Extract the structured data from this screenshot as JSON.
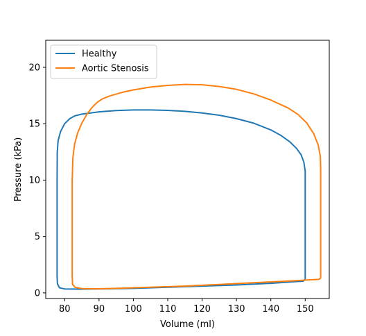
{
  "chart_data": {
    "type": "line",
    "title": "",
    "xlabel": "Volume (ml)",
    "ylabel": "Pressure (kPa)",
    "xlim": [
      74.5,
      157.0
    ],
    "ylim": [
      -0.5,
      22.4
    ],
    "xticks": [
      80,
      90,
      100,
      110,
      120,
      130,
      140,
      150
    ],
    "yticks": [
      0,
      5,
      10,
      15,
      20
    ],
    "grid": false,
    "legend_position": "upper-left",
    "series": [
      {
        "name": "Healthy",
        "color": "#1f77b4",
        "points": [
          [
            150.0,
            1.2
          ],
          [
            149.5,
            1.05
          ],
          [
            140.0,
            0.85
          ],
          [
            130.0,
            0.7
          ],
          [
            120.0,
            0.6
          ],
          [
            110.0,
            0.5
          ],
          [
            100.0,
            0.4
          ],
          [
            90.0,
            0.35
          ],
          [
            85.0,
            0.33
          ],
          [
            80.0,
            0.35
          ],
          [
            78.5,
            0.45
          ],
          [
            77.9,
            0.8
          ],
          [
            77.8,
            1.5
          ],
          [
            77.8,
            5.0
          ],
          [
            77.8,
            10.0
          ],
          [
            77.85,
            12.5
          ],
          [
            78.1,
            13.5
          ],
          [
            78.8,
            14.3
          ],
          [
            80.0,
            15.0
          ],
          [
            81.5,
            15.45
          ],
          [
            83.0,
            15.7
          ],
          [
            85.0,
            15.85
          ],
          [
            90.0,
            16.05
          ],
          [
            95.0,
            16.17
          ],
          [
            100.0,
            16.22
          ],
          [
            105.0,
            16.22
          ],
          [
            110.0,
            16.18
          ],
          [
            115.0,
            16.1
          ],
          [
            120.0,
            15.95
          ],
          [
            125.0,
            15.75
          ],
          [
            130.0,
            15.45
          ],
          [
            135.0,
            15.05
          ],
          [
            140.0,
            14.45
          ],
          [
            143.0,
            13.95
          ],
          [
            145.5,
            13.4
          ],
          [
            147.5,
            12.8
          ],
          [
            148.8,
            12.25
          ],
          [
            149.6,
            11.6
          ],
          [
            150.0,
            10.8
          ],
          [
            150.0,
            8.0
          ],
          [
            150.0,
            5.0
          ],
          [
            150.0,
            2.0
          ],
          [
            150.0,
            1.2
          ]
        ]
      },
      {
        "name": "Aortic Stenosis",
        "color": "#ff7f0e",
        "points": [
          [
            154.5,
            1.3
          ],
          [
            154.0,
            1.2
          ],
          [
            145.0,
            1.05
          ],
          [
            135.0,
            0.9
          ],
          [
            125.0,
            0.75
          ],
          [
            115.0,
            0.6
          ],
          [
            105.0,
            0.5
          ],
          [
            95.0,
            0.4
          ],
          [
            90.0,
            0.36
          ],
          [
            85.0,
            0.38
          ],
          [
            83.0,
            0.5
          ],
          [
            82.3,
            0.75
          ],
          [
            82.2,
            1.5
          ],
          [
            82.2,
            5.0
          ],
          [
            82.2,
            10.0
          ],
          [
            82.4,
            12.0
          ],
          [
            82.9,
            13.2
          ],
          [
            83.8,
            14.2
          ],
          [
            85.0,
            15.05
          ],
          [
            86.5,
            15.85
          ],
          [
            88.0,
            16.45
          ],
          [
            89.5,
            16.9
          ],
          [
            91.0,
            17.2
          ],
          [
            93.0,
            17.45
          ],
          [
            97.0,
            17.8
          ],
          [
            100.0,
            18.0
          ],
          [
            105.0,
            18.25
          ],
          [
            110.0,
            18.4
          ],
          [
            115.0,
            18.48
          ],
          [
            120.0,
            18.45
          ],
          [
            125.0,
            18.3
          ],
          [
            130.0,
            18.05
          ],
          [
            135.0,
            17.65
          ],
          [
            140.0,
            17.1
          ],
          [
            145.0,
            16.4
          ],
          [
            148.0,
            15.8
          ],
          [
            150.5,
            15.05
          ],
          [
            152.5,
            14.1
          ],
          [
            153.8,
            13.1
          ],
          [
            154.4,
            12.1
          ],
          [
            154.5,
            11.0
          ],
          [
            154.5,
            8.0
          ],
          [
            154.5,
            5.0
          ],
          [
            154.5,
            1.3
          ]
        ]
      }
    ]
  }
}
